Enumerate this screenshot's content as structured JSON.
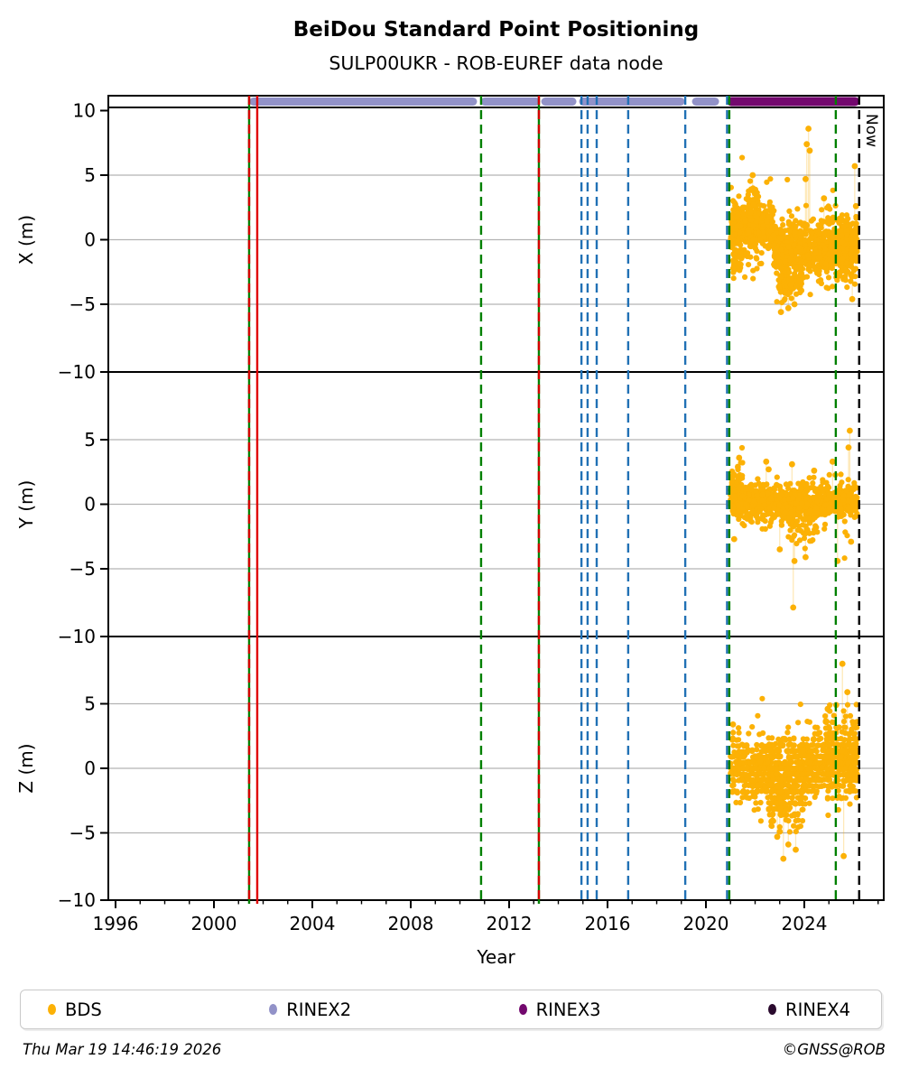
{
  "header": {
    "title": "BeiDou Standard Point Positioning",
    "subtitle": "SULP00UKR - ROB-EUREF data node"
  },
  "footer": {
    "timestamp": "Thu Mar 19 14:46:19 2026",
    "credit": "©GNSS@ROB"
  },
  "legend": {
    "items": [
      {
        "label": "BDS",
        "color": "#fcb105"
      },
      {
        "label": "RINEX2",
        "color": "#9292c8"
      },
      {
        "label": "RINEX3",
        "color": "#73086e"
      },
      {
        "label": "RINEX4",
        "color": "#2a0a2e"
      }
    ]
  },
  "chart_data": {
    "type": "scatter",
    "title": "BeiDou Standard Point Positioning",
    "subtitle": "SULP00UKR - ROB-EUREF data node",
    "xlabel": "Year",
    "xlim": [
      1995.7,
      2027.2
    ],
    "ylim": [
      -10.25,
      10.25
    ],
    "x_ticks_major": [
      1996,
      2000,
      2004,
      2008,
      2012,
      2016,
      2020,
      2024
    ],
    "x_minor_from": 1996,
    "x_minor_to": 2027,
    "grid_values": [
      5,
      0,
      -5
    ],
    "point_color": "#fcb105",
    "grid_color": "#b3b3b3",
    "now": {
      "label": "Now",
      "x": 2026.23
    },
    "availability": [
      {
        "name": "RINEX2",
        "color": "#9292c8",
        "width": 9,
        "segments": [
          [
            2001.5,
            2010.64
          ],
          [
            2010.9,
            2013.2
          ],
          [
            2013.36,
            2014.68
          ],
          [
            2014.9,
            2019.08
          ],
          [
            2019.49,
            2020.48
          ]
        ]
      },
      {
        "name": "RINEX3",
        "color": "#73086e",
        "width": 10,
        "segments": [
          [
            2020.92,
            2026.17
          ]
        ]
      }
    ],
    "event_lines": [
      {
        "x": 2001.43,
        "color": "#008000",
        "dash": false
      },
      {
        "x": 2001.43,
        "color": "#d40000",
        "dash": true
      },
      {
        "x": 2001.76,
        "color": "#e00000",
        "dash": false
      },
      {
        "x": 2010.86,
        "color": "#008000",
        "dash": true
      },
      {
        "x": 2013.21,
        "color": "#008000",
        "dash": false
      },
      {
        "x": 2013.21,
        "color": "#d40000",
        "dash": true
      },
      {
        "x": 2014.94,
        "color": "#2171b5",
        "dash": true
      },
      {
        "x": 2015.19,
        "color": "#2171b5",
        "dash": true
      },
      {
        "x": 2015.56,
        "color": "#2171b5",
        "dash": true
      },
      {
        "x": 2016.84,
        "color": "#2171b5",
        "dash": true
      },
      {
        "x": 2019.16,
        "color": "#2171b5",
        "dash": true
      },
      {
        "x": 2020.86,
        "color": "#2171b5",
        "dash": true
      },
      {
        "x": 2020.95,
        "color": "#008000",
        "dash": true
      },
      {
        "x": 2025.28,
        "color": "#008000",
        "dash": true
      },
      {
        "x": 2026.23,
        "color": "#000000",
        "dash": true
      }
    ],
    "panels": [
      {
        "name": "X",
        "ylabel": "X (m)",
        "yticks": [
          10,
          5,
          0,
          -5,
          -10
        ],
        "clusters": [
          {
            "x0": 2021.0,
            "x1": 2022.75,
            "cy": 0.95,
            "sy": 0.75,
            "n": 420
          },
          {
            "x0": 2021.0,
            "x1": 2022.75,
            "cy": 0.7,
            "sy": 1.5,
            "n": 110
          },
          {
            "x0": 2021.65,
            "x1": 2022.15,
            "cy": 2.6,
            "sy": 1.0,
            "n": 55
          },
          {
            "x0": 2021.1,
            "x1": 2021.45,
            "cy": -1.7,
            "sy": 0.8,
            "n": 35
          },
          {
            "x0": 2022.75,
            "x1": 2026.15,
            "cy": -0.7,
            "sy": 0.95,
            "n": 620
          },
          {
            "x0": 2022.75,
            "x1": 2026.15,
            "cy": -0.6,
            "sy": 1.7,
            "n": 150
          },
          {
            "x0": 2022.95,
            "x1": 2023.9,
            "cy": -3.2,
            "sy": 0.8,
            "n": 85
          },
          {
            "x0": 2025.5,
            "x1": 2026.15,
            "cy": -0.2,
            "sy": 0.9,
            "n": 110
          }
        ],
        "outliers": [
          [
            2024.17,
            8.6
          ],
          [
            2024.1,
            7.4
          ],
          [
            2024.22,
            6.9
          ],
          [
            2024.05,
            4.7
          ],
          [
            2023.05,
            -5.6
          ],
          [
            2023.35,
            -5.3
          ],
          [
            2023.6,
            -5.0
          ],
          [
            2026.05,
            5.7
          ],
          [
            2024.8,
            3.2
          ],
          [
            2021.9,
            5.0
          ],
          [
            2025.95,
            -4.6
          ],
          [
            2026.1,
            2.6
          ]
        ]
      },
      {
        "name": "Y",
        "ylabel": "Y (m)",
        "yticks": [
          5,
          0,
          -5,
          -10
        ],
        "clusters": [
          {
            "x0": 2021.0,
            "x1": 2026.15,
            "cy": 0.2,
            "sy": 0.5,
            "n": 750
          },
          {
            "x0": 2021.0,
            "x1": 2026.15,
            "cy": 0.05,
            "sy": 1.0,
            "n": 290
          },
          {
            "x0": 2021.05,
            "x1": 2021.5,
            "cy": 1.0,
            "sy": 1.1,
            "n": 60
          },
          {
            "x0": 2023.3,
            "x1": 2024.6,
            "cy": -1.4,
            "sy": 1.0,
            "n": 80
          }
        ],
        "outliers": [
          [
            2021.35,
            3.6
          ],
          [
            2021.3,
            2.9
          ],
          [
            2022.45,
            3.3
          ],
          [
            2022.55,
            2.7
          ],
          [
            2023.5,
            3.1
          ],
          [
            2024.4,
            2.6
          ],
          [
            2025.15,
            3.3
          ],
          [
            2025.85,
            5.7
          ],
          [
            2025.8,
            4.4
          ],
          [
            2023.6,
            -4.4
          ],
          [
            2023.0,
            -3.5
          ],
          [
            2024.05,
            -4.1
          ],
          [
            2023.55,
            -8.0
          ],
          [
            2025.35,
            -4.4
          ],
          [
            2025.9,
            -2.9
          ],
          [
            2021.15,
            -2.7
          ]
        ]
      },
      {
        "name": "Z",
        "ylabel": "Z (m)",
        "yticks": [
          5,
          0,
          -5,
          -10
        ],
        "quant": 0.45,
        "clusters": [
          {
            "x0": 2021.0,
            "x1": 2026.15,
            "cy": 0.1,
            "sy": 1.1,
            "n": 850
          },
          {
            "x0": 2021.0,
            "x1": 2026.15,
            "cy": 0.0,
            "sy": 1.9,
            "n": 190
          },
          {
            "x0": 2022.55,
            "x1": 2023.95,
            "cy": -2.3,
            "sy": 1.1,
            "n": 180
          },
          {
            "x0": 2024.85,
            "x1": 2026.15,
            "cy": 1.6,
            "sy": 1.2,
            "n": 150
          }
        ],
        "outliers": [
          [
            2025.55,
            8.1
          ],
          [
            2025.75,
            5.9
          ],
          [
            2025.3,
            4.9
          ],
          [
            2023.15,
            -7.0
          ],
          [
            2023.65,
            -6.3
          ],
          [
            2025.6,
            -6.8
          ],
          [
            2022.9,
            -5.3
          ],
          [
            2023.35,
            -5.9
          ],
          [
            2024.95,
            4.6
          ],
          [
            2021.1,
            3.4
          ],
          [
            2026.0,
            3.4
          ],
          [
            2023.0,
            -4.9
          ]
        ]
      }
    ]
  }
}
